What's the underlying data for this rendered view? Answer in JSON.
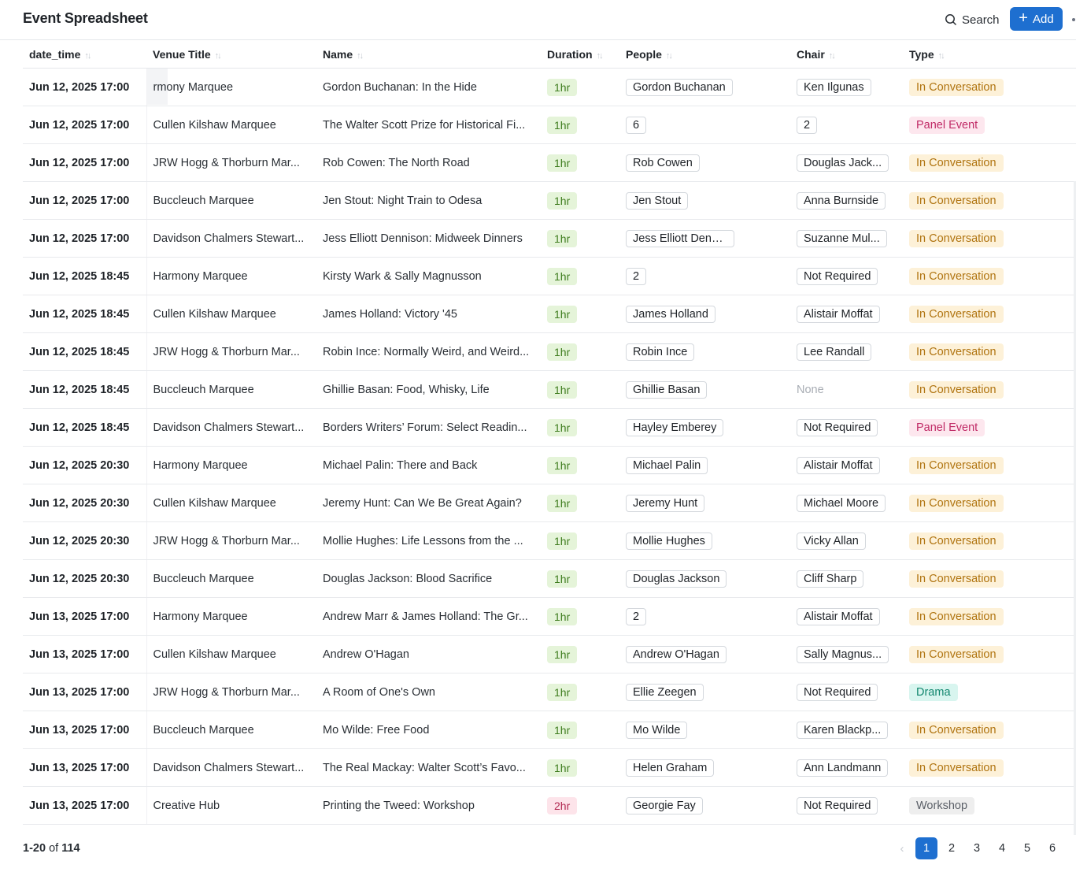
{
  "header": {
    "title": "Event Spreadsheet",
    "search_label": "Search",
    "add_label": "Add"
  },
  "columns": [
    "date_time",
    "Venue Title",
    "Name",
    "Duration",
    "People",
    "Chair",
    "Type"
  ],
  "rows": [
    {
      "dt": "Jun 12, 2025 17:00",
      "venue": "rmony Marquee",
      "name": "Gordon Buchanan: In the Hide",
      "dur": "1hr",
      "people": "Gordon Buchanan",
      "chair": "Ken Ilgunas",
      "type": "In Conversation"
    },
    {
      "dt": "Jun 12, 2025 17:00",
      "venue": "Cullen Kilshaw Marquee",
      "name": "The Walter Scott Prize for Historical Fi...",
      "dur": "1hr",
      "people": "6",
      "chair": "2",
      "type": "Panel Event"
    },
    {
      "dt": "Jun 12, 2025 17:00",
      "venue": "JRW Hogg & Thorburn Mar...",
      "name": "Rob Cowen: The North Road",
      "dur": "1hr",
      "people": "Rob Cowen",
      "chair": "Douglas Jack...",
      "type": "In Conversation"
    },
    {
      "dt": "Jun 12, 2025 17:00",
      "venue": "Buccleuch Marquee",
      "name": "Jen Stout: Night Train to Odesa",
      "dur": "1hr",
      "people": "Jen Stout",
      "chair": "Anna Burnside",
      "type": "In Conversation"
    },
    {
      "dt": "Jun 12, 2025 17:00",
      "venue": "Davidson Chalmers Stewart...",
      "name": "Jess Elliott Dennison: Midweek Dinners",
      "dur": "1hr",
      "people": "Jess Elliott Dennison",
      "chair": "Suzanne Mul...",
      "type": "In Conversation"
    },
    {
      "dt": "Jun 12, 2025 18:45",
      "venue": "Harmony Marquee",
      "name": "Kirsty Wark & Sally Magnusson",
      "dur": "1hr",
      "people": "2",
      "chair": "Not Required",
      "type": "In Conversation"
    },
    {
      "dt": "Jun 12, 2025 18:45",
      "venue": "Cullen Kilshaw Marquee",
      "name": "James Holland: Victory '45",
      "dur": "1hr",
      "people": "James Holland",
      "chair": "Alistair Moffat",
      "type": "In Conversation"
    },
    {
      "dt": "Jun 12, 2025 18:45",
      "venue": "JRW Hogg & Thorburn Mar...",
      "name": "Robin Ince: Normally Weird, and Weird...",
      "dur": "1hr",
      "people": "Robin Ince",
      "chair": "Lee Randall",
      "type": "In Conversation"
    },
    {
      "dt": "Jun 12, 2025 18:45",
      "venue": "Buccleuch Marquee",
      "name": "Ghillie Basan: Food, Whisky, Life",
      "dur": "1hr",
      "people": "Ghillie Basan",
      "chair": "None",
      "type": "In Conversation"
    },
    {
      "dt": "Jun 12, 2025 18:45",
      "venue": "Davidson Chalmers Stewart...",
      "name": "Borders Writers’ Forum: Select Readin...",
      "dur": "1hr",
      "people": "Hayley Emberey",
      "chair": "Not Required",
      "type": "Panel Event"
    },
    {
      "dt": "Jun 12, 2025 20:30",
      "venue": "Harmony Marquee",
      "name": "Michael Palin: There and Back",
      "dur": "1hr",
      "people": "Michael Palin",
      "chair": "Alistair Moffat",
      "type": "In Conversation"
    },
    {
      "dt": "Jun 12, 2025 20:30",
      "venue": "Cullen Kilshaw Marquee",
      "name": "Jeremy Hunt: Can We Be Great Again?",
      "dur": "1hr",
      "people": "Jeremy Hunt",
      "chair": "Michael Moore",
      "type": "In Conversation"
    },
    {
      "dt": "Jun 12, 2025 20:30",
      "venue": "JRW Hogg & Thorburn Mar...",
      "name": "Mollie Hughes: Life Lessons from the ...",
      "dur": "1hr",
      "people": "Mollie Hughes",
      "chair": "Vicky Allan",
      "type": "In Conversation"
    },
    {
      "dt": "Jun 12, 2025 20:30",
      "venue": "Buccleuch Marquee",
      "name": "Douglas Jackson: Blood Sacrifice",
      "dur": "1hr",
      "people": "Douglas Jackson",
      "chair": "Cliff Sharp",
      "type": "In Conversation"
    },
    {
      "dt": "Jun 13, 2025 17:00",
      "venue": "Harmony Marquee",
      "name": "Andrew Marr & James Holland: The Gr...",
      "dur": "1hr",
      "people": "2",
      "chair": "Alistair Moffat",
      "type": "In Conversation"
    },
    {
      "dt": "Jun 13, 2025 17:00",
      "venue": "Cullen Kilshaw Marquee",
      "name": "Andrew O'Hagan",
      "dur": "1hr",
      "people": "Andrew O'Hagan",
      "chair": "Sally Magnus...",
      "type": "In Conversation"
    },
    {
      "dt": "Jun 13, 2025 17:00",
      "venue": "JRW Hogg & Thorburn Mar...",
      "name": "A Room of One's Own",
      "dur": "1hr",
      "people": "Ellie Zeegen",
      "chair": "Not Required",
      "type": "Drama"
    },
    {
      "dt": "Jun 13, 2025 17:00",
      "venue": "Buccleuch Marquee",
      "name": "Mo Wilde: Free Food",
      "dur": "1hr",
      "people": "Mo Wilde",
      "chair": "Karen Blackp...",
      "type": "In Conversation"
    },
    {
      "dt": "Jun 13, 2025 17:00",
      "venue": "Davidson Chalmers Stewart...",
      "name": "The Real Mackay: Walter Scott’s Favo...",
      "dur": "1hr",
      "people": "Helen Graham",
      "chair": "Ann Landmann",
      "type": "In Conversation"
    },
    {
      "dt": "Jun 13, 2025 17:00",
      "venue": "Creative Hub",
      "name": "Printing the Tweed: Workshop",
      "dur": "2hr",
      "people": "Georgie Fay",
      "chair": "Not Required",
      "type": "Workshop"
    }
  ],
  "footer": {
    "range": "1-20",
    "of_label": "of",
    "total": "114"
  },
  "pagination": {
    "prev_icon": "chevron-left-icon",
    "pages": [
      "1",
      "2",
      "3",
      "4",
      "5",
      "6"
    ],
    "current": "1"
  },
  "colors": {
    "accent": "#1e6fd0"
  }
}
